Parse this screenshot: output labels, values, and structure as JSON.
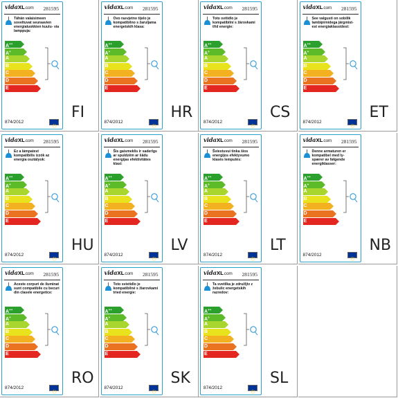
{
  "brand": {
    "name": "vida",
    "mark": "XL",
    "suffix": ".com"
  },
  "model_number": "281595",
  "regulation": "874/2012",
  "icons": {
    "lamp": "pendant-lamp-icon",
    "bracket": "lamp-compatibility-bracket-icon",
    "flag": "eu-flag-icon"
  },
  "energy_classes": [
    {
      "letter": "A",
      "plus": "++",
      "color": "#2ca02c"
    },
    {
      "letter": "A",
      "plus": "+",
      "color": "#5dbb2a"
    },
    {
      "letter": "A",
      "plus": "",
      "color": "#a8d52e"
    },
    {
      "letter": "B",
      "plus": "",
      "color": "#e8e31d"
    },
    {
      "letter": "C",
      "plus": "",
      "color": "#f3b020"
    },
    {
      "letter": "D",
      "plus": "",
      "color": "#ea7322"
    },
    {
      "letter": "E",
      "plus": "",
      "color": "#e3261f"
    }
  ],
  "labels": [
    {
      "lang": "FI",
      "text": "Tähän valaisimeen soveltuvat seuraavien energialuokkien kuulu- via lamppuja:"
    },
    {
      "lang": "HR",
      "text": "Ovo rasvjetno tijelo je kompatibilno s žaruljama energetskih klasa:"
    },
    {
      "lang": "CS",
      "text": "Toto svítidlo je kompatibilní s žárovkami tříd energie:"
    },
    {
      "lang": "ET",
      "text": "See valgusti on sobilik lambipirnidega järgmist- est energiaklassidest:"
    },
    {
      "lang": "HU",
      "text": "Ez a lámpatest kompatibilis izzók az energia osztályok:"
    },
    {
      "lang": "LV",
      "text": "Šis gaismeklis ir saderīgs ar spuldzēm ar šādu energijas efektivitātes klasi:"
    },
    {
      "lang": "LT",
      "text": "Šviestuvui tinka šios energijos efektyvumo klasės lemputės:"
    },
    {
      "lang": "NB",
      "text": "Denne armaturen er kompatibel med ly- spærer av følgende energiklasser:"
    },
    {
      "lang": "RO",
      "text": "Aceste corpuri de iluminat sunt compatibile cu becuri din clasele energetice:"
    },
    {
      "lang": "SK",
      "text": "Toto svietidlo je kompatibilné s žiarovkami tried energie:"
    },
    {
      "lang": "SL",
      "text": "Ta svetilka je združljiv z žebulic energetskih razredov:"
    }
  ]
}
